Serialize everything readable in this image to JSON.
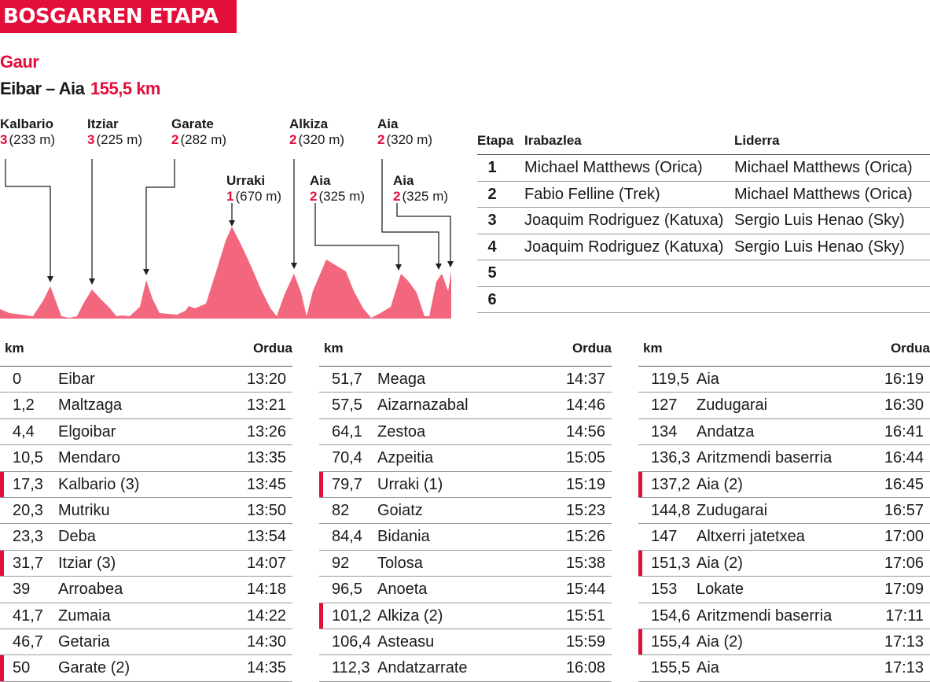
{
  "header": {
    "banner": "BOSGARREN ETAPA",
    "subtitle": "Gaur",
    "route": "Eibar – Aia",
    "distance": "155,5 km"
  },
  "profile": {
    "climbs": [
      {
        "name": "Kalbario",
        "cat": "3",
        "height": "(233 m)"
      },
      {
        "name": "Itziar",
        "cat": "3",
        "height": "(225 m)"
      },
      {
        "name": "Garate",
        "cat": "2",
        "height": "(282 m)"
      },
      {
        "name": "Urraki",
        "cat": "1",
        "height": "(670 m)"
      },
      {
        "name": "Alkiza",
        "cat": "2",
        "height": "(320 m)"
      },
      {
        "name": "Aia",
        "cat": "2",
        "height": "(325 m)"
      },
      {
        "name": "Aia",
        "cat": "2",
        "height": "(320 m)"
      },
      {
        "name": "Aia",
        "cat": "2",
        "height": "(325 m)"
      }
    ],
    "fill_color": "#f2667e"
  },
  "stages": {
    "headers": {
      "etapa": "Etapa",
      "winner": "Irabazlea",
      "leader": "Liderra"
    },
    "rows": [
      {
        "etapa": "1",
        "winner": "Michael Matthews (Orica)",
        "leader": "Michael Matthews (Orica)"
      },
      {
        "etapa": "2",
        "winner": "Fabio Felline (Trek)",
        "leader": "Michael Matthews (Orica)"
      },
      {
        "etapa": "3",
        "winner": "Joaquim Rodriguez (Katuxa)",
        "leader": "Sergio Luis Henao (Sky)"
      },
      {
        "etapa": "4",
        "winner": "Joaquim Rodriguez (Katuxa)",
        "leader": "Sergio Luis Henao (Sky)"
      },
      {
        "etapa": "5",
        "winner": "",
        "leader": ""
      },
      {
        "etapa": "6",
        "winner": "",
        "leader": ""
      }
    ]
  },
  "schedule": {
    "headers": {
      "km": "km",
      "time": "Ordua"
    },
    "columns": [
      [
        {
          "km": "0",
          "place": "Eibar",
          "time": "13:20",
          "climb": false
        },
        {
          "km": "1,2",
          "place": "Maltzaga",
          "time": "13:21",
          "climb": false
        },
        {
          "km": "4,4",
          "place": "Elgoibar",
          "time": "13:26",
          "climb": false
        },
        {
          "km": "10,5",
          "place": "Mendaro",
          "time": "13:35",
          "climb": false
        },
        {
          "km": "17,3",
          "place": "Kalbario (3)",
          "time": "13:45",
          "climb": true
        },
        {
          "km": "20,3",
          "place": "Mutriku",
          "time": "13:50",
          "climb": false
        },
        {
          "km": "23,3",
          "place": "Deba",
          "time": "13:54",
          "climb": false
        },
        {
          "km": "31,7",
          "place": "Itziar (3)",
          "time": "14:07",
          "climb": true
        },
        {
          "km": "39",
          "place": "Arroabea",
          "time": "14:18",
          "climb": false
        },
        {
          "km": "41,7",
          "place": "Zumaia",
          "time": "14:22",
          "climb": false
        },
        {
          "km": "46,7",
          "place": "Getaria",
          "time": "14:30",
          "climb": false
        },
        {
          "km": "50",
          "place": "Garate (2)",
          "time": "14:35",
          "climb": true
        }
      ],
      [
        {
          "km": "51,7",
          "place": "Meaga",
          "time": "14:37",
          "climb": false
        },
        {
          "km": "57,5",
          "place": "Aizarnazabal",
          "time": "14:46",
          "climb": false
        },
        {
          "km": "64,1",
          "place": "Zestoa",
          "time": "14:56",
          "climb": false
        },
        {
          "km": "70,4",
          "place": "Azpeitia",
          "time": "15:05",
          "climb": false
        },
        {
          "km": "79,7",
          "place": "Urraki (1)",
          "time": "15:19",
          "climb": true
        },
        {
          "km": "82",
          "place": "Goiatz",
          "time": "15:23",
          "climb": false
        },
        {
          "km": "84,4",
          "place": "Bidania",
          "time": "15:26",
          "climb": false
        },
        {
          "km": "92",
          "place": "Tolosa",
          "time": "15:38",
          "climb": false
        },
        {
          "km": "96,5",
          "place": "Anoeta",
          "time": "15:44",
          "climb": false
        },
        {
          "km": "101,2",
          "place": "Alkiza (2)",
          "time": "15:51",
          "climb": true
        },
        {
          "km": "106,4",
          "place": "Asteasu",
          "time": "15:59",
          "climb": false
        },
        {
          "km": "112,3",
          "place": "Andatzarrate",
          "time": "16:08",
          "climb": false
        }
      ],
      [
        {
          "km": "119,5",
          "place": "Aia",
          "time": "16:19",
          "climb": false
        },
        {
          "km": "127",
          "place": "Zudugarai",
          "time": "16:30",
          "climb": false
        },
        {
          "km": "134",
          "place": "Andatza",
          "time": "16:41",
          "climb": false
        },
        {
          "km": "136,3",
          "place": "Aritzmendi baserria",
          "time": "16:44",
          "climb": false
        },
        {
          "km": "137,2",
          "place": "Aia (2)",
          "time": "16:45",
          "climb": true
        },
        {
          "km": "144,8",
          "place": "Zudugarai",
          "time": "16:57",
          "climb": false
        },
        {
          "km": "147",
          "place": "Altxerri jatetxea",
          "time": "17:00",
          "climb": false
        },
        {
          "km": "151,3",
          "place": "Aia (2)",
          "time": "17:06",
          "climb": true
        },
        {
          "km": "153",
          "place": "Lokate",
          "time": "17:09",
          "climb": false
        },
        {
          "km": "154,6",
          "place": "Aritzmendi baserria",
          "time": "17:11",
          "climb": false
        },
        {
          "km": "155,4",
          "place": "Aia (2)",
          "time": "17:13",
          "climb": true
        },
        {
          "km": "155,5",
          "place": "Aia",
          "time": "17:13",
          "climb": false
        }
      ]
    ]
  }
}
